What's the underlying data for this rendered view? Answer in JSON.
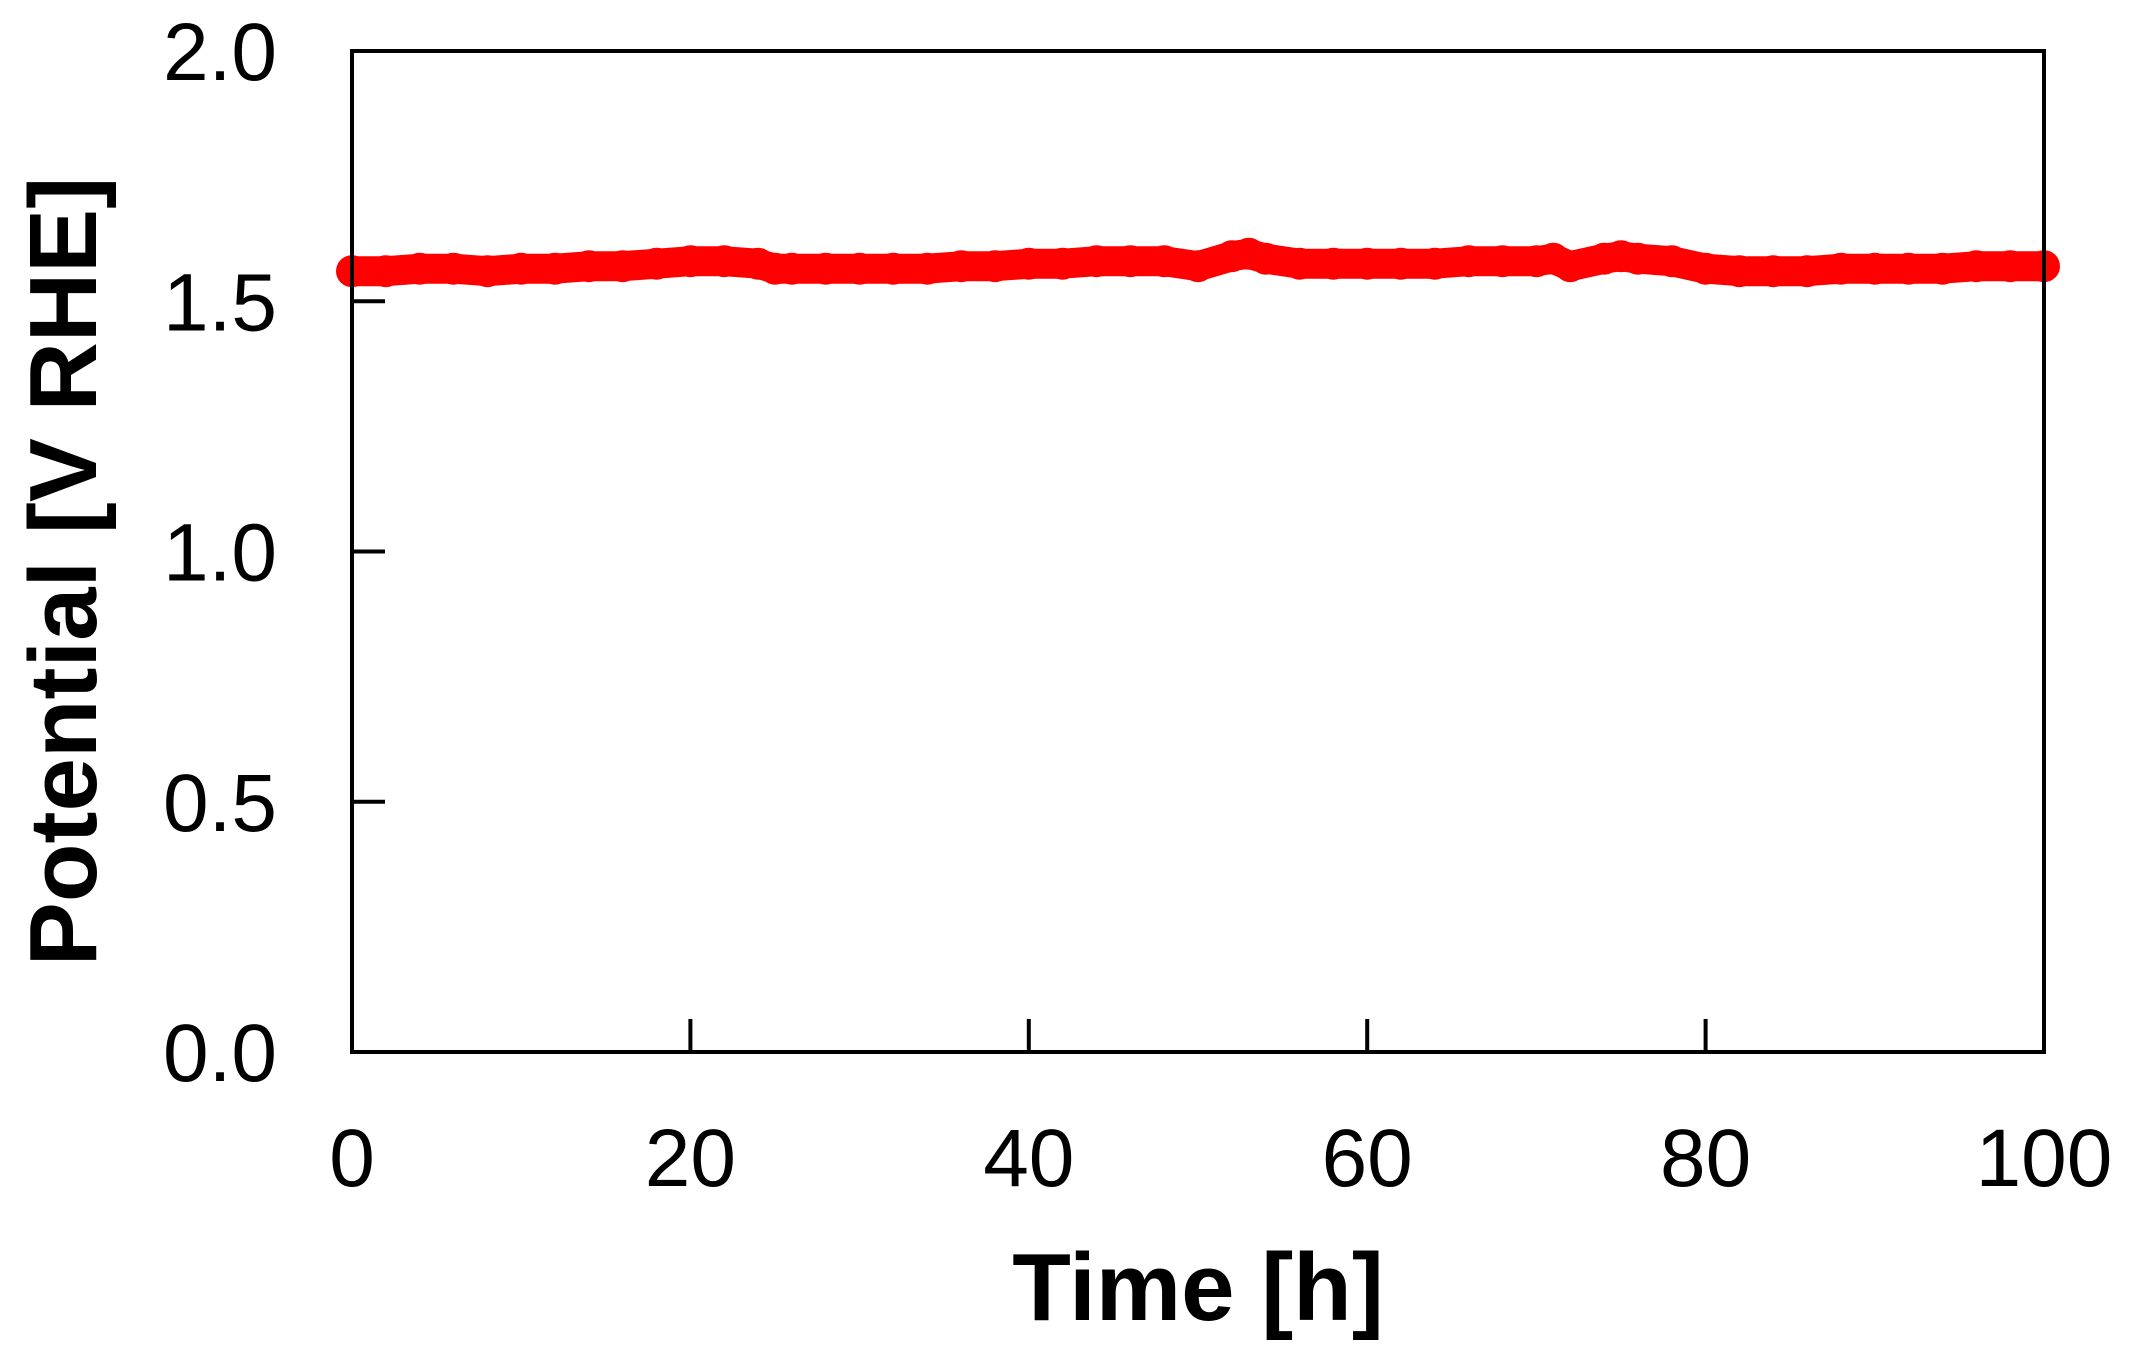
{
  "chart_data": {
    "type": "line",
    "title": "",
    "xlabel": "Time [h]",
    "ylabel": "Potential [V RHE]",
    "xlim": [
      0,
      100
    ],
    "ylim": [
      0.0,
      2.0
    ],
    "xticks": [
      "0",
      "20",
      "40",
      "60",
      "80",
      "100"
    ],
    "yticks": [
      "0.0",
      "0.5",
      "1.0",
      "1.5",
      "2.0"
    ],
    "grid": false,
    "legend": "none",
    "series": [
      {
        "color": "#ff0000",
        "x": [
          0,
          2,
          4,
          6,
          8,
          10,
          12,
          14,
          16,
          18,
          20,
          22,
          24,
          25,
          26,
          28,
          30,
          32,
          34,
          36,
          38,
          40,
          42,
          44,
          46,
          48,
          50,
          52,
          53,
          54,
          56,
          58,
          60,
          62,
          64,
          66,
          68,
          70,
          71,
          72,
          74,
          75,
          76,
          78,
          80,
          82,
          84,
          86,
          88,
          90,
          92,
          94,
          96,
          98,
          100
        ],
        "y": [
          1.56,
          1.56,
          1.565,
          1.565,
          1.56,
          1.565,
          1.565,
          1.57,
          1.57,
          1.575,
          1.58,
          1.58,
          1.575,
          1.565,
          1.565,
          1.565,
          1.565,
          1.565,
          1.565,
          1.57,
          1.57,
          1.575,
          1.575,
          1.58,
          1.58,
          1.58,
          1.57,
          1.59,
          1.595,
          1.585,
          1.575,
          1.575,
          1.575,
          1.575,
          1.575,
          1.58,
          1.58,
          1.58,
          1.585,
          1.57,
          1.585,
          1.59,
          1.585,
          1.58,
          1.565,
          1.56,
          1.56,
          1.56,
          1.565,
          1.565,
          1.565,
          1.565,
          1.57,
          1.57,
          1.57
        ]
      }
    ]
  }
}
